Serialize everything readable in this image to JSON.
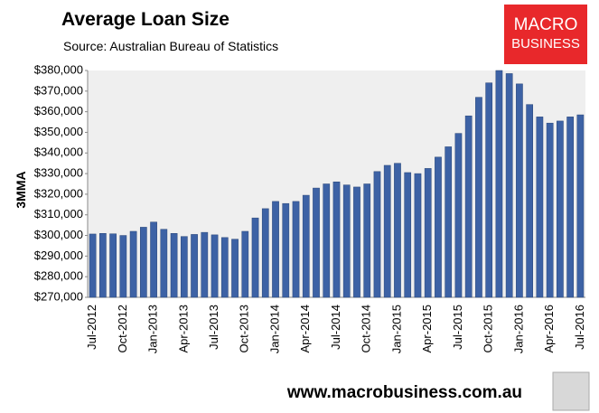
{
  "chart_data": {
    "type": "bar",
    "title": "Average Loan Size",
    "subtitle": "Source: Australian Bureau of Statistics",
    "y_label": "3MMA",
    "categories": [
      "Jul-2012",
      null,
      null,
      "Oct-2012",
      null,
      null,
      "Jan-2013",
      null,
      null,
      "Apr-2013",
      null,
      null,
      "Jul-2013",
      null,
      null,
      "Oct-2013",
      null,
      null,
      "Jan-2014",
      null,
      null,
      "Apr-2014",
      null,
      null,
      "Jul-2014",
      null,
      null,
      "Oct-2014",
      null,
      null,
      "Jan-2015",
      null,
      null,
      "Apr-2015",
      null,
      null,
      "Jul-2015",
      null,
      null,
      "Oct-2015",
      null,
      null,
      "Jan-2016",
      null,
      null,
      "Apr-2016",
      null,
      null,
      "Jul-2016"
    ],
    "values": [
      300700,
      301000,
      300800,
      300000,
      302000,
      304000,
      306500,
      303000,
      301000,
      299500,
      300500,
      301500,
      300300,
      299000,
      298200,
      302000,
      308500,
      313000,
      316500,
      315500,
      316500,
      319500,
      323000,
      325000,
      326000,
      324500,
      323500,
      325000,
      331000,
      334000,
      335000,
      330500,
      330000,
      332500,
      338000,
      343000,
      349500,
      358000,
      367000,
      374000,
      380000,
      378500,
      373500,
      363500,
      357500,
      354500,
      355500,
      357500,
      358500
    ],
    "color": "#3d62a5",
    "ylim": [
      270000,
      380000
    ],
    "yticks": [
      {
        "value": 270000,
        "label": "$270,000"
      },
      {
        "value": 280000,
        "label": "$280,000"
      },
      {
        "value": 290000,
        "label": "$290,000"
      },
      {
        "value": 300000,
        "label": "$300,000"
      },
      {
        "value": 310000,
        "label": "$310,000"
      },
      {
        "value": 320000,
        "label": "$320,000"
      },
      {
        "value": 330000,
        "label": "$330,000"
      },
      {
        "value": 340000,
        "label": "$340,000"
      },
      {
        "value": 350000,
        "label": "$350,000"
      },
      {
        "value": 360000,
        "label": "$360,000"
      },
      {
        "value": 370000,
        "label": "$370,000"
      },
      {
        "value": 380000,
        "label": "$380,000"
      }
    ],
    "grid": false
  },
  "logo": {
    "line1": "MACRO",
    "line2": "BUSINESS"
  },
  "footer": "www.macrobusiness.com.au"
}
